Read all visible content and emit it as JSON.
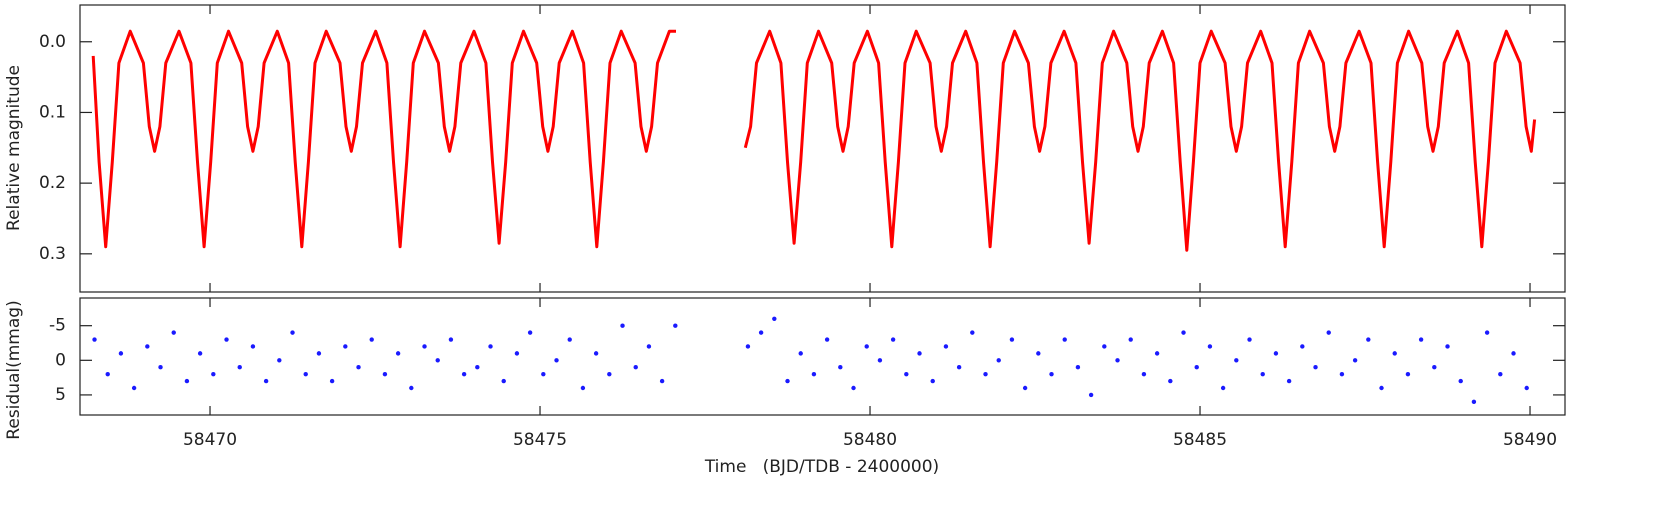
{
  "chart_data": [
    {
      "type": "line",
      "ylabel": "Relative magnitude",
      "xlim": [
        58468.03,
        58490.53
      ],
      "xticks": [
        58470,
        58475,
        58480,
        58485,
        58490
      ],
      "show_xtick_labels": false,
      "ylim": [
        -0.052,
        0.354
      ],
      "invert_y": true,
      "yticks": [
        {
          "value": 0,
          "label": "0.0"
        },
        0.1,
        0.2,
        0.3
      ],
      "x": [
        58468.23,
        58468.32,
        58468.42,
        58468.52,
        58468.62,
        58468.79,
        58468.99,
        58469.08,
        58469.16,
        58469.24,
        58469.33,
        58469.53,
        58469.71,
        58469.81,
        58469.91,
        58470.01,
        58470.11,
        58470.28,
        58470.48,
        58470.57,
        58470.65,
        58470.73,
        58470.82,
        58471.02,
        58471.19,
        58471.29,
        58471.39,
        58471.49,
        58471.59,
        58471.76,
        58471.97,
        58472.06,
        58472.14,
        58472.22,
        58472.31,
        58472.51,
        58472.68,
        58472.78,
        58472.88,
        58472.98,
        58473.08,
        58473.25,
        58473.46,
        58473.55,
        58473.63,
        58473.71,
        58473.8,
        58474.0,
        58474.18,
        58474.28,
        58474.38,
        58474.48,
        58474.58,
        58474.75,
        58474.95,
        58475.04,
        58475.12,
        58475.2,
        58475.29,
        58475.49,
        58475.66,
        58475.76,
        58475.86,
        58475.96,
        58476.06,
        58476.23,
        58476.44,
        58476.53,
        58476.61,
        58476.69,
        58476.78,
        58476.96,
        58477.06,
        58477.6,
        58478.11,
        58478.19,
        58478.28,
        58478.48,
        58478.65,
        58478.75,
        58478.85,
        58478.95,
        58479.05,
        58479.22,
        58479.42,
        58479.51,
        58479.59,
        58479.67,
        58479.76,
        58479.96,
        58480.13,
        58480.23,
        58480.33,
        58480.43,
        58480.53,
        58480.7,
        58480.91,
        58481.0,
        58481.08,
        58481.16,
        58481.25,
        58481.45,
        58481.62,
        58481.72,
        58481.82,
        58481.92,
        58482.02,
        58482.19,
        58482.4,
        58482.49,
        58482.57,
        58482.65,
        58482.74,
        58482.94,
        58483.12,
        58483.22,
        58483.32,
        58483.42,
        58483.52,
        58483.69,
        58483.89,
        58483.98,
        58484.06,
        58484.14,
        58484.23,
        58484.43,
        58484.6,
        58484.7,
        58484.8,
        58484.9,
        58485.0,
        58485.17,
        58485.38,
        58485.47,
        58485.55,
        58485.63,
        58485.72,
        58485.92,
        58486.09,
        58486.19,
        58486.29,
        58486.39,
        58486.49,
        58486.66,
        58486.87,
        58486.96,
        58487.04,
        58487.12,
        58487.21,
        58487.41,
        58487.59,
        58487.69,
        58487.79,
        58487.89,
        58487.99,
        58488.16,
        58488.36,
        58488.45,
        58488.53,
        58488.61,
        58488.7,
        58488.9,
        58489.07,
        58489.17,
        58489.27,
        58489.37,
        58489.47,
        58489.64,
        58489.85,
        58489.94,
        58490.02,
        58490.07
      ],
      "series": [
        {
          "color": "#ff0000",
          "values": [
            0.02,
            0.17,
            0.29,
            0.17,
            0.03,
            -0.015,
            0.03,
            0.12,
            0.155,
            0.12,
            0.03,
            -0.015,
            0.03,
            0.17,
            0.29,
            0.17,
            0.03,
            -0.015,
            0.03,
            0.12,
            0.155,
            0.12,
            0.03,
            -0.015,
            0.03,
            0.17,
            0.29,
            0.17,
            0.03,
            -0.015,
            0.03,
            0.12,
            0.155,
            0.12,
            0.03,
            -0.015,
            0.03,
            0.17,
            0.29,
            0.17,
            0.03,
            -0.015,
            0.03,
            0.12,
            0.155,
            0.12,
            0.03,
            -0.015,
            0.03,
            0.17,
            0.285,
            0.17,
            0.03,
            -0.015,
            0.03,
            0.12,
            0.155,
            0.12,
            0.03,
            -0.015,
            0.03,
            0.17,
            0.29,
            0.17,
            0.03,
            -0.015,
            0.03,
            0.12,
            0.155,
            0.12,
            0.03,
            -0.015,
            -0.015,
            null,
            0.15,
            0.12,
            0.03,
            -0.015,
            0.03,
            0.17,
            0.285,
            0.17,
            0.03,
            -0.015,
            0.03,
            0.12,
            0.155,
            0.12,
            0.03,
            -0.015,
            0.03,
            0.17,
            0.29,
            0.17,
            0.03,
            -0.015,
            0.03,
            0.12,
            0.155,
            0.12,
            0.03,
            -0.015,
            0.03,
            0.17,
            0.29,
            0.17,
            0.03,
            -0.015,
            0.03,
            0.12,
            0.155,
            0.12,
            0.03,
            -0.015,
            0.03,
            0.17,
            0.285,
            0.17,
            0.03,
            -0.015,
            0.03,
            0.12,
            0.155,
            0.12,
            0.03,
            -0.015,
            0.03,
            0.17,
            0.295,
            0.17,
            0.03,
            -0.015,
            0.03,
            0.12,
            0.155,
            0.12,
            0.03,
            -0.015,
            0.03,
            0.17,
            0.29,
            0.17,
            0.03,
            -0.015,
            0.03,
            0.12,
            0.155,
            0.12,
            0.03,
            -0.015,
            0.03,
            0.17,
            0.29,
            0.17,
            0.03,
            -0.015,
            0.03,
            0.12,
            0.155,
            0.12,
            0.03,
            -0.015,
            0.03,
            0.17,
            0.29,
            0.17,
            0.03,
            -0.015,
            0.03,
            0.12,
            0.155,
            0.11
          ]
        }
      ]
    },
    {
      "type": "scatter",
      "ylabel": "Residual(mmag)",
      "xlabel": "Time   (BJD/TDB - 2400000)",
      "xlim": [
        58468.03,
        58490.53
      ],
      "xticks": [
        58470,
        58475,
        58480,
        58485,
        58490
      ],
      "show_xtick_labels": true,
      "ylim": [
        -9,
        7.9
      ],
      "invert_y": true,
      "yticks": [
        -5,
        0,
        5
      ],
      "x": [
        58468.25,
        58468.45,
        58468.65,
        58468.85,
        58469.05,
        58469.25,
        58469.45,
        58469.65,
        58469.85,
        58470.05,
        58470.25,
        58470.45,
        58470.65,
        58470.85,
        58471.05,
        58471.25,
        58471.45,
        58471.65,
        58471.85,
        58472.05,
        58472.25,
        58472.45,
        58472.65,
        58472.85,
        58473.05,
        58473.25,
        58473.45,
        58473.65,
        58473.85,
        58474.05,
        58474.25,
        58474.45,
        58474.65,
        58474.85,
        58475.05,
        58475.25,
        58475.45,
        58475.65,
        58475.85,
        58476.05,
        58476.25,
        58476.45,
        58476.65,
        58476.85,
        58477.05,
        58478.15,
        58478.35,
        58478.55,
        58478.75,
        58478.95,
        58479.15,
        58479.35,
        58479.55,
        58479.75,
        58479.95,
        58480.15,
        58480.35,
        58480.55,
        58480.75,
        58480.95,
        58481.15,
        58481.35,
        58481.55,
        58481.75,
        58481.95,
        58482.15,
        58482.35,
        58482.55,
        58482.75,
        58482.95,
        58483.15,
        58483.35,
        58483.55,
        58483.75,
        58483.95,
        58484.15,
        58484.35,
        58484.55,
        58484.75,
        58484.95,
        58485.15,
        58485.35,
        58485.55,
        58485.75,
        58485.95,
        58486.15,
        58486.35,
        58486.55,
        58486.75,
        58486.95,
        58487.15,
        58487.35,
        58487.55,
        58487.75,
        58487.95,
        58488.15,
        58488.35,
        58488.55,
        58488.75,
        58488.95,
        58489.15,
        58489.35,
        58489.55,
        58489.75,
        58489.95
      ],
      "series": [
        {
          "color": "#1a1aff",
          "values": [
            -3,
            2,
            -1,
            4,
            -2,
            1,
            -4,
            3,
            -1,
            2,
            -3,
            1,
            -2,
            3,
            0,
            -4,
            2,
            -1,
            3,
            -2,
            1,
            -3,
            2,
            -1,
            4,
            -2,
            0,
            -3,
            2,
            1,
            -2,
            3,
            -1,
            -4,
            2,
            0,
            -3,
            4,
            -1,
            2,
            -5,
            1,
            -2,
            3,
            -5,
            -2,
            -4,
            -6,
            3,
            -1,
            2,
            -3,
            1,
            4,
            -2,
            0,
            -3,
            2,
            -1,
            3,
            -2,
            1,
            -4,
            2,
            0,
            -3,
            4,
            -1,
            2,
            -3,
            1,
            5,
            -2,
            0,
            -3,
            2,
            -1,
            3,
            -4,
            1,
            -2,
            4,
            0,
            -3,
            2,
            -1,
            3,
            -2,
            1,
            -4,
            2,
            0,
            -3,
            4,
            -1,
            2,
            -3,
            1,
            -2,
            3,
            6,
            -4,
            2,
            -1,
            4
          ]
        }
      ]
    }
  ]
}
